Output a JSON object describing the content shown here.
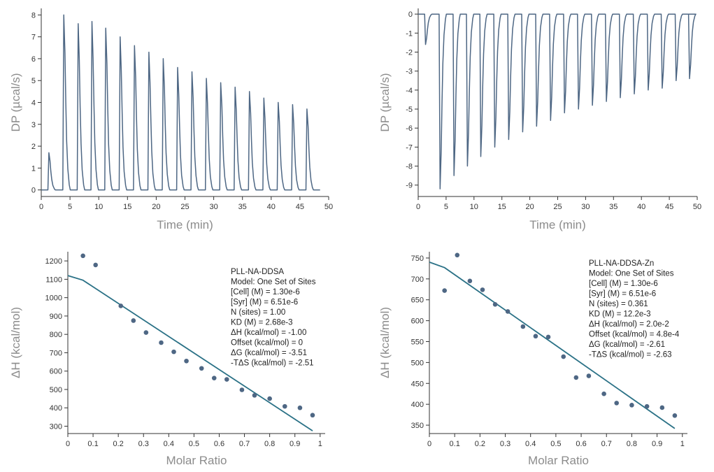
{
  "chart_data": [
    {
      "id": "dp-a",
      "type": "line",
      "xlabel": "Time (min)",
      "ylabel": "DP (µcal/s)",
      "xlim": [
        0,
        50
      ],
      "ylim": [
        -0.3,
        8.3
      ],
      "xticks": [
        0,
        5,
        10,
        15,
        20,
        25,
        30,
        35,
        40,
        45,
        50
      ],
      "yticks": [
        0,
        1,
        2,
        3,
        4,
        5,
        6,
        7,
        8
      ],
      "color": "#4e6784",
      "baseline": 0,
      "trace_end": 48.5,
      "injections": [
        {
          "t": 1.2,
          "peak": 1.7
        },
        {
          "t": 3.8,
          "peak": 8.0
        },
        {
          "t": 6.3,
          "peak": 7.6
        },
        {
          "t": 8.7,
          "peak": 7.7
        },
        {
          "t": 11.1,
          "peak": 7.4
        },
        {
          "t": 13.6,
          "peak": 7.0
        },
        {
          "t": 16.1,
          "peak": 6.6
        },
        {
          "t": 18.6,
          "peak": 6.3
        },
        {
          "t": 21.1,
          "peak": 6.0
        },
        {
          "t": 23.6,
          "peak": 5.6
        },
        {
          "t": 26.1,
          "peak": 5.4
        },
        {
          "t": 28.6,
          "peak": 5.1
        },
        {
          "t": 31.1,
          "peak": 4.9
        },
        {
          "t": 33.6,
          "peak": 4.7
        },
        {
          "t": 36.1,
          "peak": 4.5
        },
        {
          "t": 38.6,
          "peak": 4.2
        },
        {
          "t": 41.1,
          "peak": 4.0
        },
        {
          "t": 43.6,
          "peak": 3.9
        },
        {
          "t": 46.1,
          "peak": 3.7
        }
      ]
    },
    {
      "id": "dp-b",
      "type": "line",
      "xlabel": "Time (min)",
      "ylabel": "DP (µcal/s)",
      "xlim": [
        0,
        50
      ],
      "ylim": [
        -9.6,
        0.3
      ],
      "xticks": [
        0,
        5,
        10,
        15,
        20,
        25,
        30,
        35,
        40,
        45,
        50
      ],
      "yticks": [
        0,
        -1,
        -2,
        -3,
        -4,
        -5,
        -6,
        -7,
        -8,
        -9
      ],
      "color": "#4e6784",
      "baseline": 0,
      "trace_end": 48.5,
      "injections": [
        {
          "t": 1.2,
          "peak": -1.6
        },
        {
          "t": 3.8,
          "peak": -9.2
        },
        {
          "t": 6.3,
          "peak": -8.5
        },
        {
          "t": 8.7,
          "peak": -8.0
        },
        {
          "t": 11.1,
          "peak": -7.5
        },
        {
          "t": 13.6,
          "peak": -7.0
        },
        {
          "t": 16.1,
          "peak": -6.6
        },
        {
          "t": 18.6,
          "peak": -6.2
        },
        {
          "t": 21.1,
          "peak": -5.9
        },
        {
          "t": 23.6,
          "peak": -5.6
        },
        {
          "t": 26.1,
          "peak": -5.2
        },
        {
          "t": 28.6,
          "peak": -5.0
        },
        {
          "t": 31.1,
          "peak": -4.8
        },
        {
          "t": 33.6,
          "peak": -4.6
        },
        {
          "t": 36.1,
          "peak": -4.4
        },
        {
          "t": 38.6,
          "peak": -4.2
        },
        {
          "t": 41.1,
          "peak": -4.0
        },
        {
          "t": 43.6,
          "peak": -3.9
        },
        {
          "t": 46.1,
          "peak": -3.5
        },
        {
          "t": 48.5,
          "peak": -3.4
        }
      ]
    },
    {
      "id": "fit-a",
      "type": "scatter",
      "xlabel": "Molar Ratio",
      "ylabel": "ΔH (kcal/mol)",
      "xlim": [
        0,
        1.02
      ],
      "ylim": [
        260,
        1250
      ],
      "xticks": [
        0,
        0.1,
        0.2,
        0.3,
        0.4,
        0.5,
        0.6,
        0.7,
        0.8,
        0.9,
        1
      ],
      "yticks": [
        300,
        400,
        500,
        600,
        700,
        800,
        900,
        1000,
        1100,
        1200
      ],
      "color": "#4e6784",
      "fit_color": "#2a7186",
      "points_x": [
        0.06,
        0.11,
        0.21,
        0.26,
        0.31,
        0.37,
        0.42,
        0.47,
        0.53,
        0.58,
        0.63,
        0.69,
        0.74,
        0.8,
        0.86,
        0.92,
        0.97
      ],
      "points_y": [
        1228,
        1178,
        955,
        875,
        810,
        755,
        705,
        655,
        615,
        562,
        555,
        498,
        468,
        450,
        408,
        400,
        360
      ],
      "fit_x": [
        0,
        0.06,
        0.97
      ],
      "fit_y": [
        1120,
        1095,
        275
      ],
      "annotation": [
        "PLL-NA-DDSA",
        "Model: One Set of Sites",
        "[Cell] (M) = 1.30e-6",
        "[Syr] (M) = 6.51e-6",
        "N (sites) = 1.00",
        "KD (M) = 2.68e-3",
        "ΔH (kcal/mol) = -1.00",
        "Offset (kcal/mol) = 0",
        "ΔG (kcal/mol) = -3.51",
        "-TΔS (kcal/mol) = -2.51"
      ]
    },
    {
      "id": "fit-b",
      "type": "scatter",
      "xlabel": "Molar Ratio",
      "ylabel": "ΔH (kcal/mol)",
      "xlim": [
        0,
        1.02
      ],
      "ylim": [
        330,
        765
      ],
      "xticks": [
        0,
        0.1,
        0.2,
        0.3,
        0.4,
        0.5,
        0.6,
        0.7,
        0.8,
        0.9,
        1
      ],
      "yticks": [
        350,
        400,
        450,
        500,
        550,
        600,
        650,
        700,
        750
      ],
      "color": "#4e6784",
      "fit_color": "#2a7186",
      "points_x": [
        0.06,
        0.11,
        0.16,
        0.21,
        0.26,
        0.31,
        0.37,
        0.42,
        0.47,
        0.53,
        0.58,
        0.63,
        0.69,
        0.74,
        0.8,
        0.86,
        0.92,
        0.97
      ],
      "points_y": [
        672,
        757,
        695,
        674,
        639,
        622,
        586,
        563,
        561,
        514,
        464,
        468,
        425,
        403,
        398,
        395,
        392,
        373
      ],
      "fit_x": [
        0,
        0.06,
        0.97
      ],
      "fit_y": [
        740,
        727,
        342
      ],
      "annotation": [
        "PLL-NA-DDSA-Zn",
        "Model: One Set of Sites",
        "[Cell] (M) = 1.30e-6",
        "[Syr] (M) = 6.51e-6",
        "N (sites) = 0.361",
        "KD (M) = 12.2e-3",
        "ΔH (kcal/mol) = 2.0e-2",
        "Offset (kcal/mol) = 4.8e-4",
        "ΔG (kcal/mol) = -2.61",
        "-TΔS (kcal/mol) = -2.63"
      ]
    }
  ]
}
